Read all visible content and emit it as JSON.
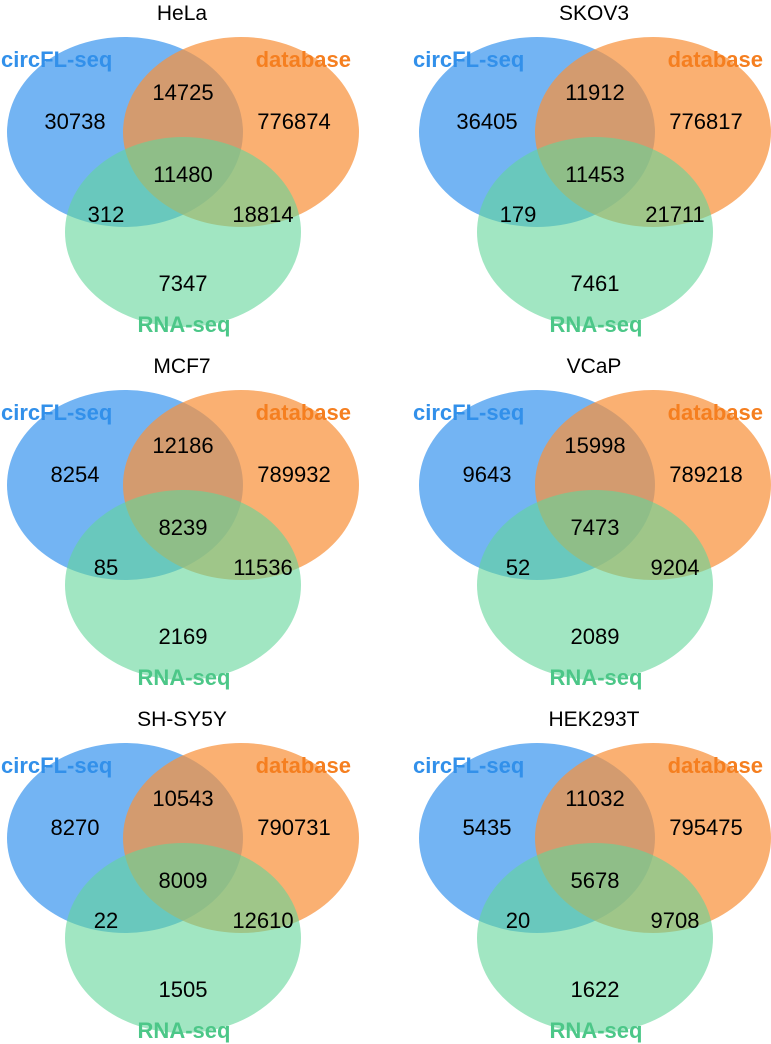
{
  "colors": {
    "circfl": "#3d97ee",
    "database": "#f8923c",
    "rnaseq": "#63d69a",
    "circfl_label": "#3290ea",
    "database_label": "#f57f20",
    "rnaseq_label": "#4cc788"
  },
  "set_labels": {
    "a": "circFL-seq",
    "b": "database",
    "c": "RNA-seq"
  },
  "diagrams": [
    {
      "title": "HeLa",
      "a_only": "30738",
      "b_only": "776874",
      "ab": "14725",
      "abc": "11480",
      "ac": "312",
      "bc": "18814",
      "c_only": "7347"
    },
    {
      "title": "SKOV3",
      "a_only": "36405",
      "b_only": "776817",
      "ab": "11912",
      "abc": "11453",
      "ac": "179",
      "bc": "21711",
      "c_only": "7461"
    },
    {
      "title": "MCF7",
      "a_only": "8254",
      "b_only": "789932",
      "ab": "12186",
      "abc": "8239",
      "ac": "85",
      "bc": "11536",
      "c_only": "2169"
    },
    {
      "title": "VCaP",
      "a_only": "9643",
      "b_only": "789218",
      "ab": "15998",
      "abc": "7473",
      "ac": "52",
      "bc": "9204",
      "c_only": "2089"
    },
    {
      "title": "SH-SY5Y",
      "a_only": "8270",
      "b_only": "790731",
      "ab": "10543",
      "abc": "8009",
      "ac": "22",
      "bc": "12610",
      "c_only": "1505"
    },
    {
      "title": "HEK293T",
      "a_only": "5435",
      "b_only": "795475",
      "ab": "11032",
      "abc": "5678",
      "ac": "20",
      "bc": "9708",
      "c_only": "1622"
    }
  ]
}
